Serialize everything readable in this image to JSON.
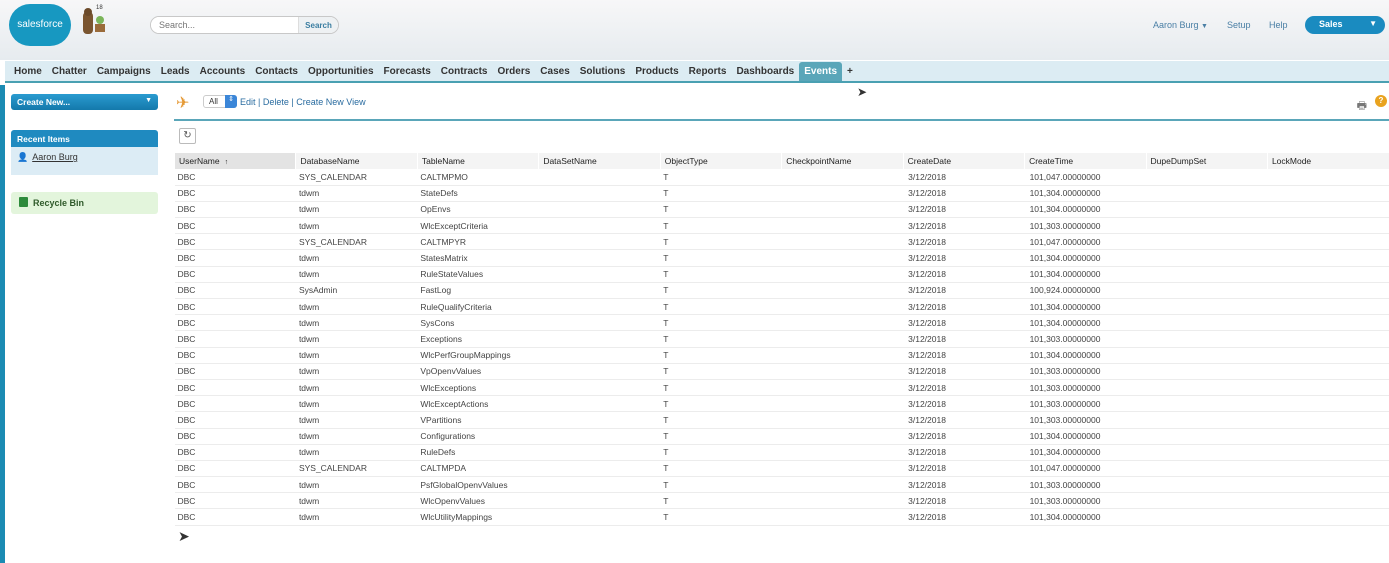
{
  "header": {
    "logo_text": "salesforce",
    "mascot_badge": "18",
    "search_placeholder": "Search...",
    "search_button": "Search",
    "user_menu": "Aaron Burg",
    "setup": "Setup",
    "help": "Help",
    "app_menu": "Sales"
  },
  "tabs": [
    "Home",
    "Chatter",
    "Campaigns",
    "Leads",
    "Accounts",
    "Contacts",
    "Opportunities",
    "Forecasts",
    "Contracts",
    "Orders",
    "Cases",
    "Solutions",
    "Products",
    "Reports",
    "Dashboards",
    "Events",
    "+"
  ],
  "active_tab": "Events",
  "sidebar": {
    "create_new": "Create New...",
    "recent_items_title": "Recent Items",
    "recent_items": [
      "Aaron Burg"
    ],
    "recycle_bin": "Recycle Bin"
  },
  "view": {
    "selected": "All",
    "edit": "Edit",
    "delete": "Delete",
    "create_new_view": "Create New View"
  },
  "table": {
    "sort_indicator": "↑",
    "columns": [
      "UserName",
      "DatabaseName",
      "TableName",
      "DataSetName",
      "ObjectType",
      "CheckpointName",
      "CreateDate",
      "CreateTime",
      "DupeDumpSet",
      "LockMode"
    ],
    "rows": [
      [
        "DBC",
        "SYS_CALENDAR",
        "CALTMPMO",
        "",
        "T",
        "",
        "3/12/2018",
        "101,047.00000000",
        "",
        ""
      ],
      [
        "DBC",
        "tdwm",
        "StateDefs",
        "",
        "T",
        "",
        "3/12/2018",
        "101,304.00000000",
        "",
        ""
      ],
      [
        "DBC",
        "tdwm",
        "OpEnvs",
        "",
        "T",
        "",
        "3/12/2018",
        "101,304.00000000",
        "",
        ""
      ],
      [
        "DBC",
        "tdwm",
        "WlcExceptCriteria",
        "",
        "T",
        "",
        "3/12/2018",
        "101,303.00000000",
        "",
        ""
      ],
      [
        "DBC",
        "SYS_CALENDAR",
        "CALTMPYR",
        "",
        "T",
        "",
        "3/12/2018",
        "101,047.00000000",
        "",
        ""
      ],
      [
        "DBC",
        "tdwm",
        "StatesMatrix",
        "",
        "T",
        "",
        "3/12/2018",
        "101,304.00000000",
        "",
        ""
      ],
      [
        "DBC",
        "tdwm",
        "RuleStateValues",
        "",
        "T",
        "",
        "3/12/2018",
        "101,304.00000000",
        "",
        ""
      ],
      [
        "DBC",
        "SysAdmin",
        "FastLog",
        "",
        "T",
        "",
        "3/12/2018",
        "100,924.00000000",
        "",
        ""
      ],
      [
        "DBC",
        "tdwm",
        "RuleQualifyCriteria",
        "",
        "T",
        "",
        "3/12/2018",
        "101,304.00000000",
        "",
        ""
      ],
      [
        "DBC",
        "tdwm",
        "SysCons",
        "",
        "T",
        "",
        "3/12/2018",
        "101,304.00000000",
        "",
        ""
      ],
      [
        "DBC",
        "tdwm",
        "Exceptions",
        "",
        "T",
        "",
        "3/12/2018",
        "101,303.00000000",
        "",
        ""
      ],
      [
        "DBC",
        "tdwm",
        "WlcPerfGroupMappings",
        "",
        "T",
        "",
        "3/12/2018",
        "101,304.00000000",
        "",
        ""
      ],
      [
        "DBC",
        "tdwm",
        "VpOpenvValues",
        "",
        "T",
        "",
        "3/12/2018",
        "101,303.00000000",
        "",
        ""
      ],
      [
        "DBC",
        "tdwm",
        "WlcExceptions",
        "",
        "T",
        "",
        "3/12/2018",
        "101,303.00000000",
        "",
        ""
      ],
      [
        "DBC",
        "tdwm",
        "WlcExceptActions",
        "",
        "T",
        "",
        "3/12/2018",
        "101,303.00000000",
        "",
        ""
      ],
      [
        "DBC",
        "tdwm",
        "VPartitions",
        "",
        "T",
        "",
        "3/12/2018",
        "101,303.00000000",
        "",
        ""
      ],
      [
        "DBC",
        "tdwm",
        "Configurations",
        "",
        "T",
        "",
        "3/12/2018",
        "101,304.00000000",
        "",
        ""
      ],
      [
        "DBC",
        "tdwm",
        "RuleDefs",
        "",
        "T",
        "",
        "3/12/2018",
        "101,304.00000000",
        "",
        ""
      ],
      [
        "DBC",
        "SYS_CALENDAR",
        "CALTMPDA",
        "",
        "T",
        "",
        "3/12/2018",
        "101,047.00000000",
        "",
        ""
      ],
      [
        "DBC",
        "tdwm",
        "PsfGlobalOpenvValues",
        "",
        "T",
        "",
        "3/12/2018",
        "101,303.00000000",
        "",
        ""
      ],
      [
        "DBC",
        "tdwm",
        "WlcOpenvValues",
        "",
        "T",
        "",
        "3/12/2018",
        "101,303.00000000",
        "",
        ""
      ],
      [
        "DBC",
        "tdwm",
        "WlcUtilityMappings",
        "",
        "T",
        "",
        "3/12/2018",
        "101,304.00000000",
        "",
        ""
      ]
    ]
  },
  "colors": {
    "brand": "#1798c1",
    "tab_active": "#5aa6b9",
    "recycle_bg": "#e3f5dc"
  }
}
